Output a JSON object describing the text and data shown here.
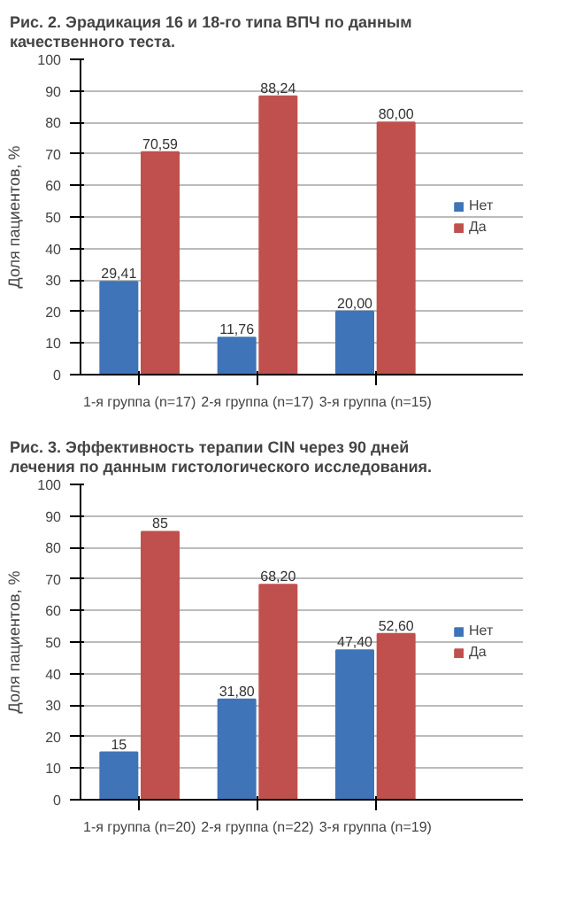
{
  "chart_data": [
    {
      "type": "bar",
      "title": "Рис. 2. Эрадикация 16 и 18-го типа ВПЧ по данным качественного теста.",
      "ylabel": "Доля пациентов, %",
      "categories": [
        "1-я группа (n=17)",
        "2-я группа (n=17)",
        "3-я группа (n=15)"
      ],
      "series": [
        {
          "name": "Нет",
          "color": "#3f74b8",
          "values": [
            29.41,
            11.76,
            20.0
          ],
          "value_labels": [
            "29,41",
            "11,76",
            "20,00"
          ]
        },
        {
          "name": "Да",
          "color": "#c0504d",
          "values": [
            70.59,
            88.24,
            80.0
          ],
          "value_labels": [
            "70,59",
            "88,24",
            "80,00"
          ]
        }
      ],
      "ylim": [
        0,
        100
      ],
      "yticks": [
        0,
        10,
        20,
        30,
        40,
        50,
        60,
        70,
        80,
        90,
        100
      ],
      "grid": "y",
      "legend": "right"
    },
    {
      "type": "bar",
      "title": "Рис. 3. Эффективность терапии CIN через 90 дней лечения по данным гистологического исследования.",
      "ylabel": "Доля пациентов, %",
      "categories": [
        "1-я группа (n=20)",
        "2-я группа (n=22)",
        "3-я группа (n=19)"
      ],
      "series": [
        {
          "name": "Нет",
          "color": "#3f74b8",
          "values": [
            15,
            31.8,
            47.4
          ],
          "value_labels": [
            "15",
            "31,80",
            "47,40"
          ]
        },
        {
          "name": "Да",
          "color": "#c0504d",
          "values": [
            85,
            68.2,
            52.6
          ],
          "value_labels": [
            "85",
            "68,20",
            "52,60"
          ]
        }
      ],
      "ylim": [
        0,
        100
      ],
      "yticks": [
        0,
        10,
        20,
        30,
        40,
        50,
        60,
        70,
        80,
        90,
        100
      ],
      "grid": "y",
      "legend": "right"
    }
  ]
}
